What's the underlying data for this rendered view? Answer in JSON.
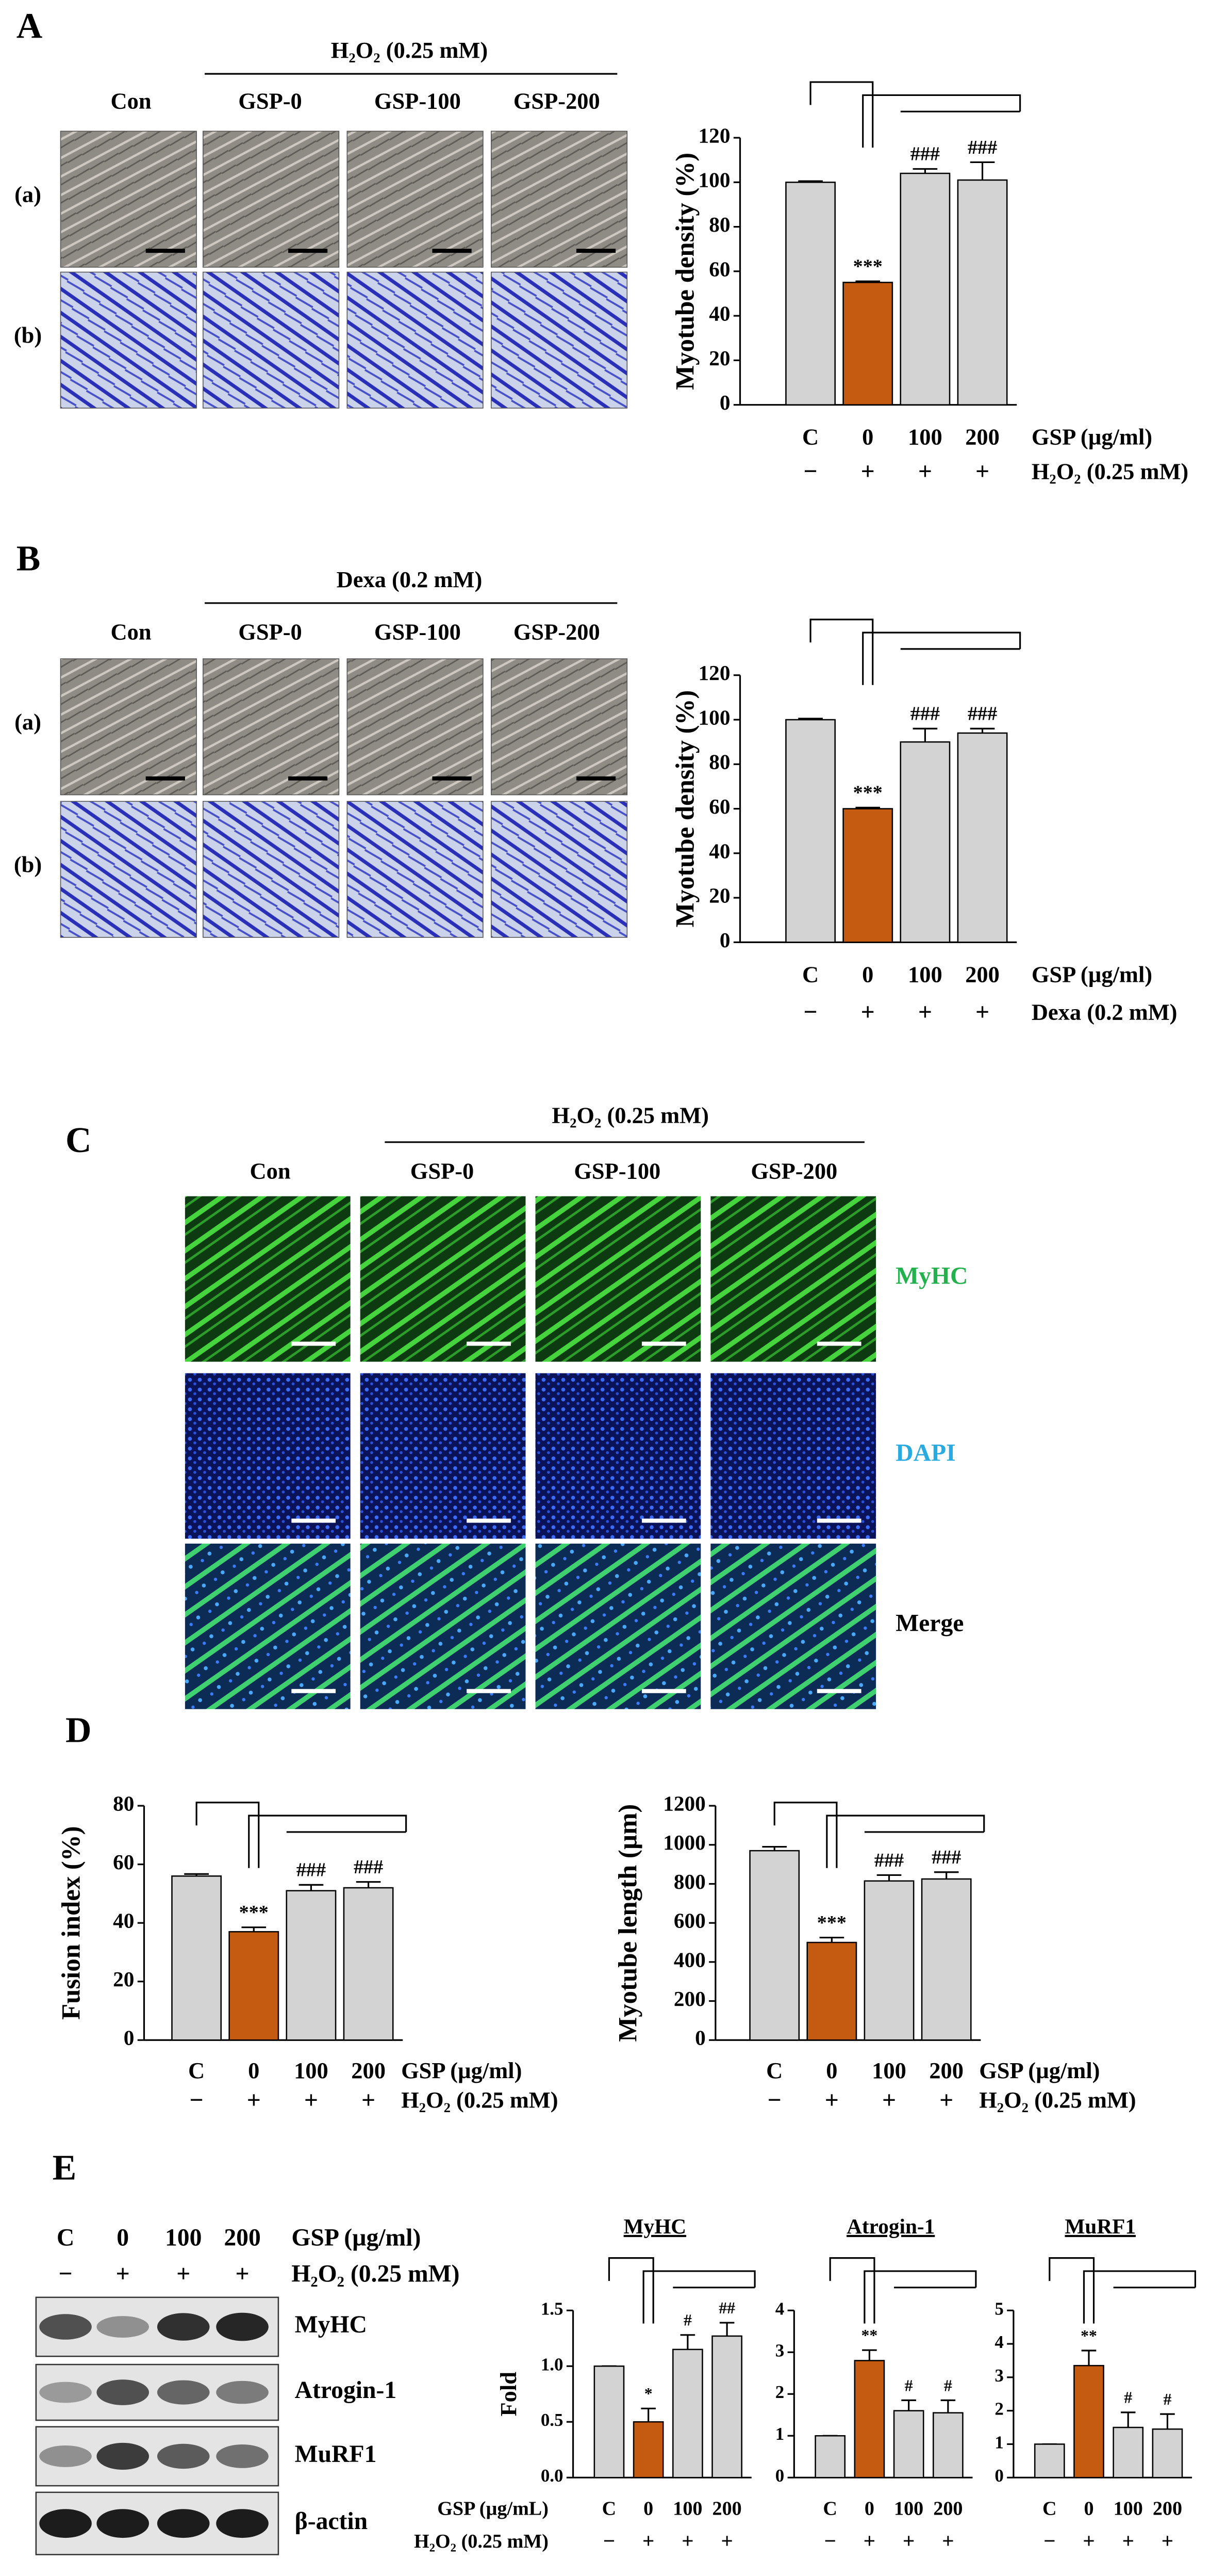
{
  "panels": {
    "A": {
      "label": "A",
      "treatment": "H₂O₂ (0.25 mM)",
      "columns": [
        "Con",
        "GSP-0",
        "GSP-100",
        "GSP-200"
      ],
      "rows": [
        "(a)",
        "(b)"
      ]
    },
    "B": {
      "label": "B",
      "treatment": "Dexa (0.2 mM)",
      "columns": [
        "Con",
        "GSP-0",
        "GSP-100",
        "GSP-200"
      ],
      "rows": [
        "(a)",
        "(b)"
      ]
    },
    "C": {
      "label": "C",
      "treatment": "H₂O₂ (0.25 mM)",
      "columns": [
        "Con",
        "GSP-0",
        "GSP-100",
        "GSP-200"
      ],
      "rows": [
        "MyHC",
        "DAPI",
        "Merge"
      ]
    },
    "D": {
      "label": "D"
    },
    "E": {
      "label": "E",
      "categories": [
        "C",
        "0",
        "100",
        "200"
      ],
      "category_label": "GSP (µg/ml)",
      "signs": [
        "−",
        "+",
        "+",
        "+"
      ],
      "sign_label": "H₂O₂ (0.25 mM)",
      "blots": [
        "MyHC",
        "Atrogin-1",
        "MuRF1",
        "β-actin"
      ]
    }
  },
  "chart_data": [
    {
      "type": "bar",
      "y_label": "Myotube density (%)",
      "categories": [
        "C",
        "0",
        "100",
        "200"
      ],
      "values": [
        100,
        55,
        104,
        101
      ],
      "errors": [
        0.5,
        0.5,
        2,
        8
      ],
      "colors": [
        "#d3d3d3",
        "#c55a11",
        "#d3d3d3",
        "#d3d3d3"
      ],
      "ylim": [
        0,
        120
      ],
      "yticks": [
        0,
        20,
        40,
        60,
        80,
        100,
        120
      ],
      "annotations": [
        {
          "category": "0",
          "text": "***"
        },
        {
          "category": "100",
          "text": "###"
        },
        {
          "category": "200",
          "text": "###"
        }
      ],
      "category_label": "GSP (µg/ml)",
      "signs": [
        "−",
        "+",
        "+",
        "+"
      ],
      "sign_label": "H₂O₂ (0.25 mM)"
    },
    {
      "type": "bar",
      "y_label": "Myotube density (%)",
      "categories": [
        "C",
        "0",
        "100",
        "200"
      ],
      "values": [
        100,
        60,
        90,
        94
      ],
      "errors": [
        0.5,
        0.5,
        6,
        2
      ],
      "colors": [
        "#d3d3d3",
        "#c55a11",
        "#d3d3d3",
        "#d3d3d3"
      ],
      "ylim": [
        0,
        120
      ],
      "yticks": [
        0,
        20,
        40,
        60,
        80,
        100,
        120
      ],
      "annotations": [
        {
          "category": "0",
          "text": "***"
        },
        {
          "category": "100",
          "text": "###"
        },
        {
          "category": "200",
          "text": "###"
        }
      ],
      "category_label": "GSP (µg/ml)",
      "signs": [
        "−",
        "+",
        "+",
        "+"
      ],
      "sign_label": "Dexa (0.2 mM)"
    },
    {
      "type": "bar",
      "y_label": "Fusion index (%)",
      "categories": [
        "C",
        "0",
        "100",
        "200"
      ],
      "values": [
        56,
        37,
        51,
        52
      ],
      "errors": [
        0.7,
        1.5,
        2,
        2
      ],
      "colors": [
        "#d3d3d3",
        "#c55a11",
        "#d3d3d3",
        "#d3d3d3"
      ],
      "ylim": [
        0,
        80
      ],
      "yticks": [
        0,
        20,
        40,
        60,
        80
      ],
      "annotations": [
        {
          "category": "0",
          "text": "***"
        },
        {
          "category": "100",
          "text": "###"
        },
        {
          "category": "200",
          "text": "###"
        }
      ],
      "category_label": "GSP (µg/ml)",
      "signs": [
        "−",
        "+",
        "+",
        "+"
      ],
      "sign_label": "H₂O₂ (0.25 mM)"
    },
    {
      "type": "bar",
      "y_label": "Myotube length (µm)",
      "categories": [
        "C",
        "0",
        "100",
        "200"
      ],
      "values": [
        970,
        500,
        815,
        825
      ],
      "errors": [
        20,
        25,
        30,
        35
      ],
      "colors": [
        "#d3d3d3",
        "#c55a11",
        "#d3d3d3",
        "#d3d3d3"
      ],
      "ylim": [
        0,
        1200
      ],
      "yticks": [
        0,
        200,
        400,
        600,
        800,
        1000,
        1200
      ],
      "annotations": [
        {
          "category": "0",
          "text": "***"
        },
        {
          "category": "100",
          "text": "###"
        },
        {
          "category": "200",
          "text": "###"
        }
      ],
      "category_label": "GSP (µg/ml)",
      "signs": [
        "−",
        "+",
        "+",
        "+"
      ],
      "sign_label": "H₂O₂ (0.25 mM)"
    },
    {
      "type": "bar",
      "title": "MyHC",
      "y_label": "Fold",
      "categories": [
        "C",
        "0",
        "100",
        "200"
      ],
      "values": [
        1,
        0.5,
        1.15,
        1.27
      ],
      "errors": [
        0,
        0.12,
        0.13,
        0.12
      ],
      "colors": [
        "#d3d3d3",
        "#c55a11",
        "#d3d3d3",
        "#d3d3d3"
      ],
      "ylim": [
        0,
        1.5
      ],
      "yticks": [
        {
          "value": 0,
          "label": "0.0"
        },
        {
          "value": 0.5,
          "label": "0.5"
        },
        {
          "value": 1,
          "label": "1.0"
        },
        {
          "value": 1.5,
          "label": "1.5"
        }
      ],
      "annotations": [
        {
          "category": "0",
          "text": "*"
        },
        {
          "category": "100",
          "text": "#"
        },
        {
          "category": "200",
          "text": "##"
        }
      ],
      "category_label": "GSP (µg/mL)",
      "signs": [
        "−",
        "+",
        "+",
        "+"
      ],
      "sign_label": "H₂O₂ (0.25 mM)"
    },
    {
      "type": "bar",
      "title": "Atrogin-1",
      "categories": [
        "C",
        "0",
        "100",
        "200"
      ],
      "values": [
        1,
        2.8,
        1.6,
        1.55
      ],
      "errors": [
        0,
        0.25,
        0.25,
        0.3
      ],
      "colors": [
        "#d3d3d3",
        "#c55a11",
        "#d3d3d3",
        "#d3d3d3"
      ],
      "ylim": [
        0,
        4
      ],
      "yticks": [
        0,
        1,
        2,
        3,
        4
      ],
      "annotations": [
        {
          "category": "0",
          "text": "**"
        },
        {
          "category": "100",
          "text": "#"
        },
        {
          "category": "200",
          "text": "#"
        }
      ],
      "signs": [
        "−",
        "+",
        "+",
        "+"
      ]
    },
    {
      "type": "bar",
      "title": "MuRF1",
      "categories": [
        "C",
        "0",
        "100",
        "200"
      ],
      "values": [
        1,
        3.35,
        1.5,
        1.45
      ],
      "errors": [
        0,
        0.45,
        0.45,
        0.45
      ],
      "colors": [
        "#d3d3d3",
        "#c55a11",
        "#d3d3d3",
        "#d3d3d3"
      ],
      "ylim": [
        0,
        5
      ],
      "yticks": [
        0,
        1,
        2,
        3,
        4,
        5
      ],
      "annotations": [
        {
          "category": "0",
          "text": "**"
        },
        {
          "category": "100",
          "text": "#"
        },
        {
          "category": "200",
          "text": "#"
        }
      ],
      "signs": [
        "−",
        "+",
        "+",
        "+"
      ]
    }
  ]
}
